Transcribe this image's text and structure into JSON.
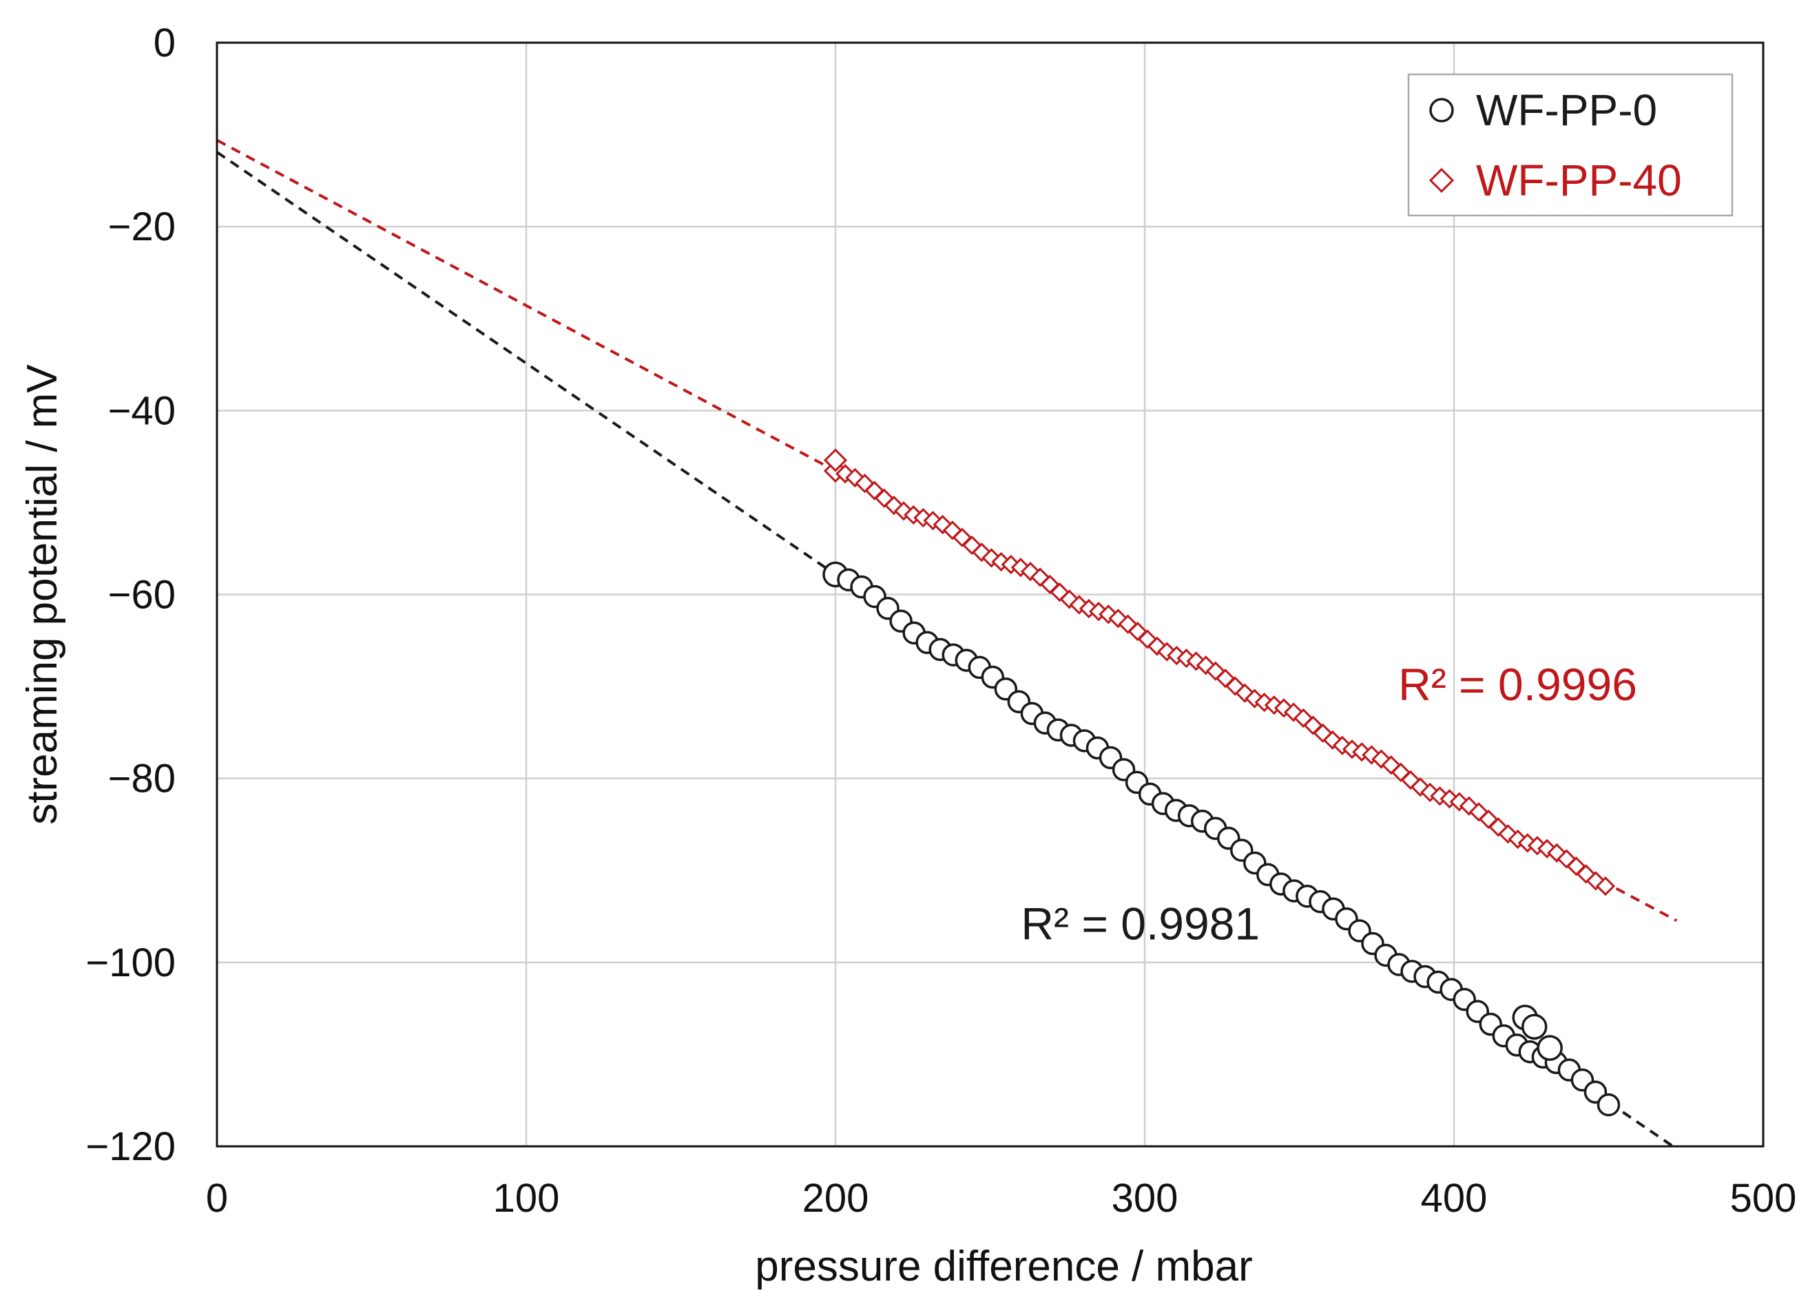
{
  "chart_data": {
    "type": "scatter",
    "title": "",
    "xlabel": "pressure difference / mbar",
    "ylabel": "streaming potential / mV",
    "xlim": [
      0,
      500
    ],
    "ylim": [
      -120,
      0
    ],
    "xticks": [
      0,
      100,
      200,
      300,
      400,
      500
    ],
    "yticks": [
      0,
      -20,
      -40,
      -60,
      -80,
      -100,
      -120
    ],
    "xtick_labels": [
      "0",
      "100",
      "200",
      "300",
      "400",
      "500"
    ],
    "ytick_labels": [
      "0",
      "−20",
      "−40",
      "−60",
      "−80",
      "−100",
      "−120"
    ],
    "grid": true,
    "legend_position": "top-right",
    "series": [
      {
        "name": "WF-PP-0",
        "marker": "circle",
        "color": "#1a1a1a",
        "x_start": 200,
        "x_end": 450,
        "n_points": 60,
        "fit_slope": -0.2296,
        "fit_intercept": -11.9,
        "fit_range": [
          0,
          472
        ],
        "r2_label": "R² = 0.9981",
        "r2_anchor": [
          260,
          -97.5
        ],
        "outliers": [
          [
            423,
            -106
          ],
          [
            426,
            -107
          ],
          [
            431,
            -109.3
          ]
        ]
      },
      {
        "name": "WF-PP-40",
        "marker": "diamond",
        "color": "#c0171a",
        "x_start": 200,
        "x_end": 449,
        "n_points": 80,
        "fit_slope": -0.1798,
        "fit_intercept": -10.6,
        "fit_range": [
          0,
          472
        ],
        "r2_label": "R² = 0.9996",
        "r2_anchor": [
          382,
          -71.5
        ],
        "outliers": [
          [
            200,
            -45.4
          ]
        ]
      }
    ]
  }
}
